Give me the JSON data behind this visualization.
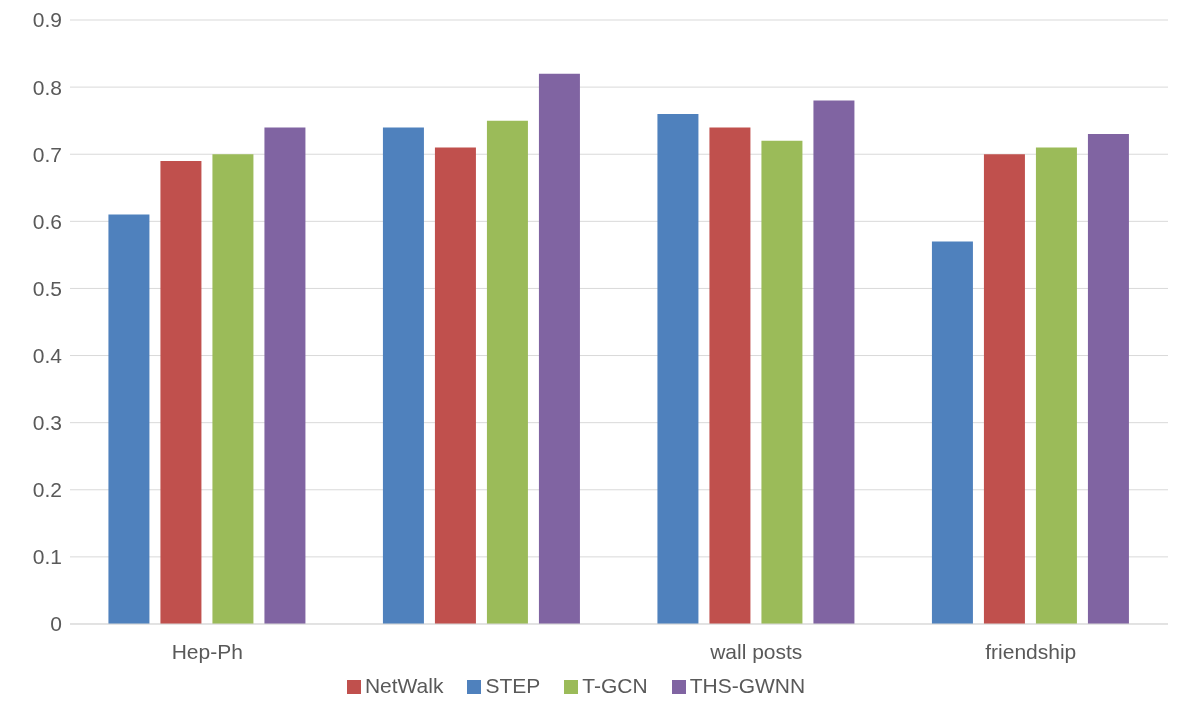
{
  "chart_data": {
    "type": "bar",
    "categories": [
      "Hep-Ph",
      null,
      "wall posts",
      "friendship"
    ],
    "series": [
      {
        "name": "STEP",
        "color": "#4f81bd",
        "values": [
          0.61,
          0.74,
          0.76,
          0.57
        ]
      },
      {
        "name": "NetWalk",
        "color": "#c0504d",
        "values": [
          0.69,
          0.71,
          0.74,
          0.7
        ]
      },
      {
        "name": "T-GCN",
        "color": "#9bbb59",
        "values": [
          0.7,
          0.75,
          0.72,
          0.71
        ]
      },
      {
        "name": "THS-GWNN",
        "color": "#8064a2",
        "values": [
          0.74,
          0.82,
          0.78,
          0.73
        ]
      }
    ],
    "ylim": [
      0,
      0.9
    ],
    "yticks": [
      0,
      0.1,
      0.2,
      0.3,
      0.4,
      0.5,
      0.6,
      0.7,
      0.8,
      0.9
    ],
    "grid": "y",
    "legend": "bottom"
  }
}
